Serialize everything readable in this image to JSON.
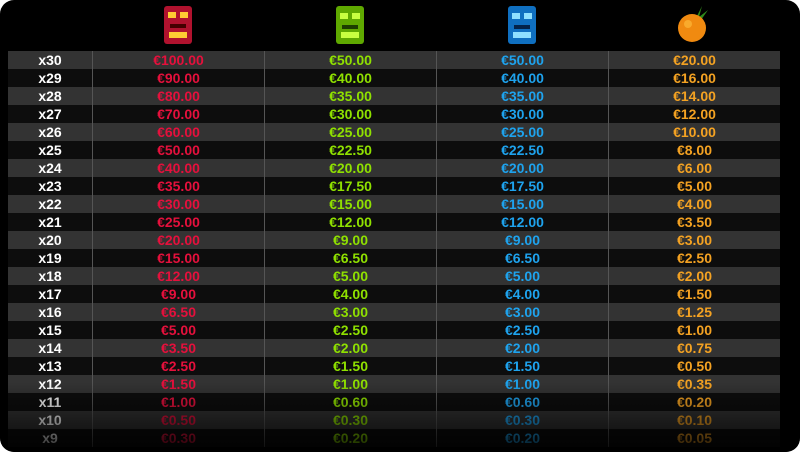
{
  "table": {
    "rows": [
      [
        "x30",
        "€100.00",
        "€50.00",
        "€50.00",
        "€20.00"
      ],
      [
        "x29",
        "€90.00",
        "€40.00",
        "€40.00",
        "€16.00"
      ],
      [
        "x28",
        "€80.00",
        "€35.00",
        "€35.00",
        "€14.00"
      ],
      [
        "x27",
        "€70.00",
        "€30.00",
        "€30.00",
        "€12.00"
      ],
      [
        "x26",
        "€60.00",
        "€25.00",
        "€25.00",
        "€10.00"
      ],
      [
        "x25",
        "€50.00",
        "€22.50",
        "€22.50",
        "€8.00"
      ],
      [
        "x24",
        "€40.00",
        "€20.00",
        "€20.00",
        "€6.00"
      ],
      [
        "x23",
        "€35.00",
        "€17.50",
        "€17.50",
        "€5.00"
      ],
      [
        "x22",
        "€30.00",
        "€15.00",
        "€15.00",
        "€4.00"
      ],
      [
        "x21",
        "€25.00",
        "€12.00",
        "€12.00",
        "€3.50"
      ],
      [
        "x20",
        "€20.00",
        "€9.00",
        "€9.00",
        "€3.00"
      ],
      [
        "x19",
        "€15.00",
        "€6.50",
        "€6.50",
        "€2.50"
      ],
      [
        "x18",
        "€12.00",
        "€5.00",
        "€5.00",
        "€2.00"
      ],
      [
        "x17",
        "€9.00",
        "€4.00",
        "€4.00",
        "€1.50"
      ],
      [
        "x16",
        "€6.50",
        "€3.00",
        "€3.00",
        "€1.25"
      ],
      [
        "x15",
        "€5.00",
        "€2.50",
        "€2.50",
        "€1.00"
      ],
      [
        "x14",
        "€3.50",
        "€2.00",
        "€2.00",
        "€0.75"
      ],
      [
        "x13",
        "€2.50",
        "€1.50",
        "€1.50",
        "€0.50"
      ],
      [
        "x12",
        "€1.50",
        "€1.00",
        "€1.00",
        "€0.35"
      ],
      [
        "x11",
        "€1.00",
        "€0.60",
        "€0.60",
        "€0.20"
      ],
      [
        "x10",
        "€0.50",
        "€0.30",
        "€0.30",
        "€0.10"
      ],
      [
        "x9",
        "€0.30",
        "€0.20",
        "€0.20",
        "€0.05"
      ]
    ]
  }
}
